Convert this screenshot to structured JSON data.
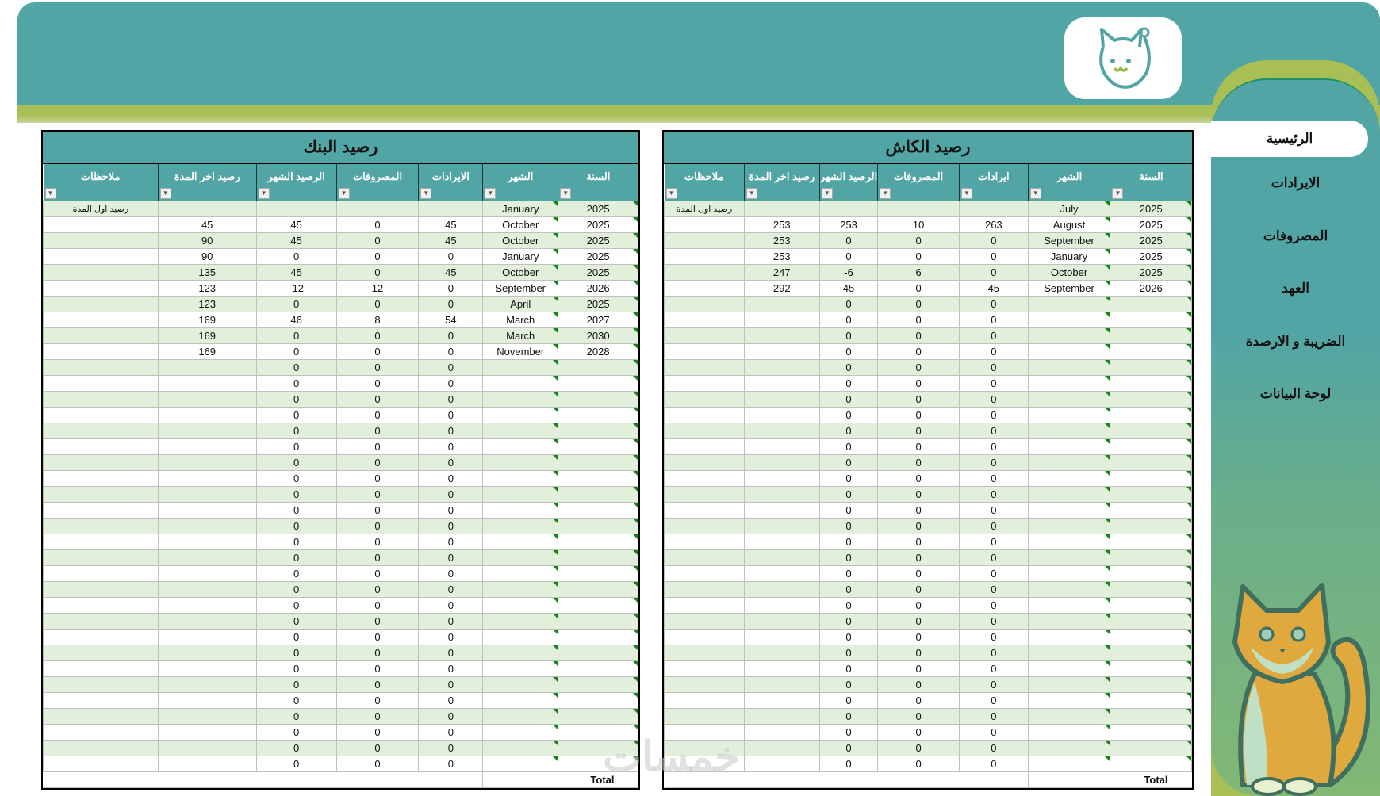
{
  "sidebar": {
    "items": [
      {
        "label": "الرئيسية",
        "active": true
      },
      {
        "label": "الايرادات"
      },
      {
        "label": "المصروفات"
      },
      {
        "label": "العهد"
      },
      {
        "label": "الضريبة و الارصدة"
      },
      {
        "label": "لوحة البيانات"
      }
    ]
  },
  "colors": {
    "teal": "#52A5A5",
    "lime": "#A8BF55",
    "row_green": "#E2EFDA"
  },
  "watermark": "خمسات",
  "bank": {
    "title": "رصيد البنك",
    "headers": [
      "ملاحظات",
      "رصيد اخر المدة",
      "الرصيد الشهر",
      "المصروفات",
      "الايرادات",
      "الشهر",
      "السنة"
    ],
    "total_label": "Total",
    "rows": [
      [
        "رصيد اول المدة",
        "",
        "",
        "",
        "",
        "January",
        "2025"
      ],
      [
        "",
        "45",
        "45",
        "0",
        "45",
        "October",
        "2025"
      ],
      [
        "",
        "90",
        "45",
        "0",
        "45",
        "October",
        "2025"
      ],
      [
        "",
        "90",
        "0",
        "0",
        "0",
        "January",
        "2025"
      ],
      [
        "",
        "135",
        "45",
        "0",
        "45",
        "October",
        "2025"
      ],
      [
        "",
        "123",
        "-12",
        "12",
        "0",
        "September",
        "2026"
      ],
      [
        "",
        "123",
        "0",
        "0",
        "0",
        "April",
        "2025"
      ],
      [
        "",
        "169",
        "46",
        "8",
        "54",
        "March",
        "2027"
      ],
      [
        "",
        "169",
        "0",
        "0",
        "0",
        "March",
        "2030"
      ],
      [
        "",
        "169",
        "0",
        "0",
        "0",
        "November",
        "2028"
      ],
      [
        "",
        "",
        "0",
        "0",
        "0",
        "",
        ""
      ],
      [
        "",
        "",
        "0",
        "0",
        "0",
        "",
        ""
      ],
      [
        "",
        "",
        "0",
        "0",
        "0",
        "",
        ""
      ],
      [
        "",
        "",
        "0",
        "0",
        "0",
        "",
        ""
      ],
      [
        "",
        "",
        "0",
        "0",
        "0",
        "",
        ""
      ],
      [
        "",
        "",
        "0",
        "0",
        "0",
        "",
        ""
      ],
      [
        "",
        "",
        "0",
        "0",
        "0",
        "",
        ""
      ],
      [
        "",
        "",
        "0",
        "0",
        "0",
        "",
        ""
      ],
      [
        "",
        "",
        "0",
        "0",
        "0",
        "",
        ""
      ],
      [
        "",
        "",
        "0",
        "0",
        "0",
        "",
        ""
      ],
      [
        "",
        "",
        "0",
        "0",
        "0",
        "",
        ""
      ],
      [
        "",
        "",
        "0",
        "0",
        "0",
        "",
        ""
      ],
      [
        "",
        "",
        "0",
        "0",
        "0",
        "",
        ""
      ],
      [
        "",
        "",
        "0",
        "0",
        "0",
        "",
        ""
      ],
      [
        "",
        "",
        "0",
        "0",
        "0",
        "",
        ""
      ],
      [
        "",
        "",
        "0",
        "0",
        "0",
        "",
        ""
      ],
      [
        "",
        "",
        "0",
        "0",
        "0",
        "",
        ""
      ],
      [
        "",
        "",
        "0",
        "0",
        "0",
        "",
        ""
      ],
      [
        "",
        "",
        "0",
        "0",
        "0",
        "",
        ""
      ],
      [
        "",
        "",
        "0",
        "0",
        "0",
        "",
        ""
      ],
      [
        "",
        "",
        "0",
        "0",
        "0",
        "",
        ""
      ],
      [
        "",
        "",
        "0",
        "0",
        "0",
        "",
        ""
      ],
      [
        "",
        "",
        "0",
        "0",
        "0",
        "",
        ""
      ],
      [
        "",
        "",
        "0",
        "0",
        "0",
        "",
        ""
      ],
      [
        "",
        "",
        "0",
        "0",
        "0",
        "",
        ""
      ],
      [
        "",
        "",
        "0",
        "0",
        "0",
        "",
        ""
      ]
    ]
  },
  "cash": {
    "title": "رصيد الكاش",
    "headers": [
      "ملاحظات",
      "رصيد اخر المدة",
      "الرصيد الشهر",
      "المصروفات",
      "ايرادات",
      "الشهر",
      "السنة"
    ],
    "total_label": "Total",
    "rows": [
      [
        "رصيد اول المدة",
        "",
        "",
        "",
        "",
        "July",
        "2025"
      ],
      [
        "",
        "253",
        "253",
        "10",
        "263",
        "August",
        "2025"
      ],
      [
        "",
        "253",
        "0",
        "0",
        "0",
        "September",
        "2025"
      ],
      [
        "",
        "253",
        "0",
        "0",
        "0",
        "January",
        "2025"
      ],
      [
        "",
        "247",
        "-6",
        "6",
        "0",
        "October",
        "2025"
      ],
      [
        "",
        "292",
        "45",
        "0",
        "45",
        "September",
        "2026"
      ],
      [
        "",
        "",
        "0",
        "0",
        "0",
        "",
        ""
      ],
      [
        "",
        "",
        "0",
        "0",
        "0",
        "",
        ""
      ],
      [
        "",
        "",
        "0",
        "0",
        "0",
        "",
        ""
      ],
      [
        "",
        "",
        "0",
        "0",
        "0",
        "",
        ""
      ],
      [
        "",
        "",
        "0",
        "0",
        "0",
        "",
        ""
      ],
      [
        "",
        "",
        "0",
        "0",
        "0",
        "",
        ""
      ],
      [
        "",
        "",
        "0",
        "0",
        "0",
        "",
        ""
      ],
      [
        "",
        "",
        "0",
        "0",
        "0",
        "",
        ""
      ],
      [
        "",
        "",
        "0",
        "0",
        "0",
        "",
        ""
      ],
      [
        "",
        "",
        "0",
        "0",
        "0",
        "",
        ""
      ],
      [
        "",
        "",
        "0",
        "0",
        "0",
        "",
        ""
      ],
      [
        "",
        "",
        "0",
        "0",
        "0",
        "",
        ""
      ],
      [
        "",
        "",
        "0",
        "0",
        "0",
        "",
        ""
      ],
      [
        "",
        "",
        "0",
        "0",
        "0",
        "",
        ""
      ],
      [
        "",
        "",
        "0",
        "0",
        "0",
        "",
        ""
      ],
      [
        "",
        "",
        "0",
        "0",
        "0",
        "",
        ""
      ],
      [
        "",
        "",
        "0",
        "0",
        "0",
        "",
        ""
      ],
      [
        "",
        "",
        "0",
        "0",
        "0",
        "",
        ""
      ],
      [
        "",
        "",
        "0",
        "0",
        "0",
        "",
        ""
      ],
      [
        "",
        "",
        "0",
        "0",
        "0",
        "",
        ""
      ],
      [
        "",
        "",
        "0",
        "0",
        "0",
        "",
        ""
      ],
      [
        "",
        "",
        "0",
        "0",
        "0",
        "",
        ""
      ],
      [
        "",
        "",
        "0",
        "0",
        "0",
        "",
        ""
      ],
      [
        "",
        "",
        "0",
        "0",
        "0",
        "",
        ""
      ],
      [
        "",
        "",
        "0",
        "0",
        "0",
        "",
        ""
      ],
      [
        "",
        "",
        "0",
        "0",
        "0",
        "",
        ""
      ],
      [
        "",
        "",
        "0",
        "0",
        "0",
        "",
        ""
      ],
      [
        "",
        "",
        "0",
        "0",
        "0",
        "",
        ""
      ],
      [
        "",
        "",
        "0",
        "0",
        "0",
        "",
        ""
      ],
      [
        "",
        "",
        "0",
        "0",
        "0",
        "",
        ""
      ]
    ]
  }
}
